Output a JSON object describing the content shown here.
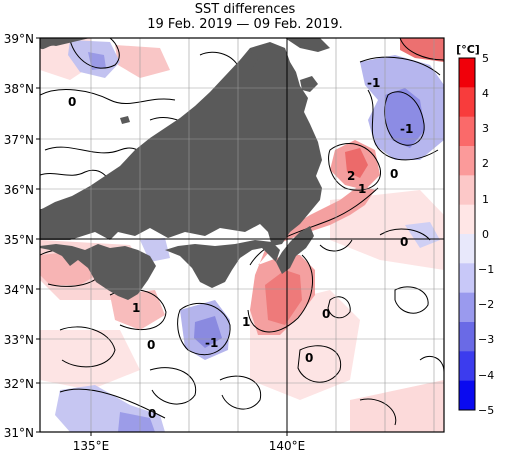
{
  "header": {
    "title": "SST differences",
    "subtitle": "19 Feb. 2019 — 09 Feb. 2019."
  },
  "axes": {
    "lat_labels": [
      "39°N",
      "38°N",
      "37°N",
      "36°N",
      "35°N",
      "34°N",
      "33°N",
      "32°N",
      "31°N"
    ],
    "lon_labels": [
      "135°E",
      "140°E"
    ]
  },
  "colorbar": {
    "unit": "[°C]",
    "ticks": [
      "5",
      "4",
      "3",
      "2",
      "1",
      "0",
      "−1",
      "−2",
      "−3",
      "−4",
      "−5"
    ],
    "colors": [
      "#f0000a",
      "#f83c3c",
      "#fa6a6a",
      "#fb9a9a",
      "#fcc8c8",
      "#ffe6e6",
      "#e8e8fb",
      "#c8c8f8",
      "#9a9aee",
      "#6a6ae6",
      "#3c3cee",
      "#0a0af0"
    ]
  },
  "contour_labels": [
    "-1",
    "0",
    "-1",
    "2",
    "1",
    "0",
    "0",
    "1",
    "1",
    "0",
    "-1",
    "0",
    "0",
    "0"
  ],
  "colors": {
    "land": "#5a5a5a",
    "warm": "#f7a8a8",
    "cold": "#b6b6ee"
  }
}
